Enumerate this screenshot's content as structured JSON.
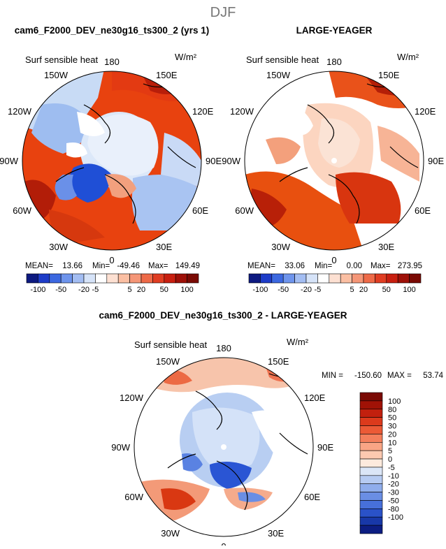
{
  "page": {
    "season": "DJF",
    "variable": "Surf sensible heat",
    "units": "W/m²"
  },
  "panels": [
    {
      "title": "cam6_F2000_DEV_ne30g16_ts300_2 (yrs 1)",
      "stats": {
        "mean_label": "MEAN=",
        "mean": "13.66",
        "min_label": "Min=",
        "min": "-49.46",
        "max_label": "Max=",
        "max": "149.49"
      }
    },
    {
      "title": "LARGE-YEAGER",
      "stats": {
        "mean_label": "MEAN=",
        "mean": "33.06",
        "min_label": "Min=",
        "min": "0.00",
        "max_label": "Max=",
        "max": "273.95"
      }
    },
    {
      "title": "cam6_F2000_DEV_ne30g16_ts300_2 - LARGE-YEAGER",
      "stats": {
        "min_label": "MIN =",
        "min": "-150.60",
        "max_label": "MAX =",
        "max": "53.74"
      }
    }
  ],
  "lon_labels": [
    "180",
    "150E",
    "120E",
    "90E",
    "60E",
    "30E",
    "0",
    "30W",
    "60W",
    "90W",
    "120W",
    "150W"
  ],
  "colorbar_top": {
    "labels": [
      "-100",
      "-50",
      "-20",
      "-5",
      "5",
      "20",
      "50",
      "100"
    ],
    "colors": [
      "#0d1a80",
      "#1e3cc8",
      "#3c68e0",
      "#6e94ec",
      "#a3bdf2",
      "#d6e3f8",
      "#ffffff",
      "#fde0d2",
      "#fbbfa3",
      "#f59677",
      "#ee6a48",
      "#e03d22",
      "#c81f10",
      "#9e1008",
      "#7a0a04"
    ]
  },
  "colorbar_diff": {
    "labels": [
      "100",
      "80",
      "50",
      "30",
      "20",
      "10",
      "5",
      "0",
      "-5",
      "-10",
      "-20",
      "-30",
      "-50",
      "-80",
      "-100"
    ],
    "colors": [
      "#7a0a04",
      "#a01206",
      "#c2200e",
      "#dc3a1c",
      "#ec5a36",
      "#f47f5c",
      "#f9a585",
      "#fcc9b0",
      "#fdeadd",
      "#dbe6f7",
      "#b6cbf2",
      "#8fadec",
      "#6a8ee4",
      "#4770da",
      "#2a52c8",
      "#1838a8",
      "#0c1d82"
    ]
  },
  "chart_data": [
    {
      "type": "heatmap",
      "projection": "north-polar-stereographic",
      "title": "cam6_F2000_DEV_ne30g16_ts300_2 (yrs 1)",
      "variable": "Surf sensible heat",
      "units": "W/m2",
      "contour_levels": [
        -100,
        -80,
        -50,
        -30,
        -20,
        -10,
        -5,
        0,
        5,
        10,
        20,
        30,
        50,
        80,
        100
      ],
      "mean": 13.66,
      "min": -49.46,
      "max": 149.49
    },
    {
      "type": "heatmap",
      "projection": "north-polar-stereographic",
      "title": "LARGE-YEAGER",
      "variable": "Surf sensible heat",
      "units": "W/m2",
      "contour_levels": [
        -100,
        -80,
        -50,
        -30,
        -20,
        -10,
        -5,
        0,
        5,
        10,
        20,
        30,
        50,
        80,
        100
      ],
      "mean": 33.06,
      "min": 0.0,
      "max": 273.95
    },
    {
      "type": "heatmap",
      "projection": "north-polar-stereographic",
      "title": "cam6_F2000_DEV_ne30g16_ts300_2 - LARGE-YEAGER",
      "variable": "Surf sensible heat",
      "units": "W/m2",
      "contour_levels": [
        -100,
        -80,
        -50,
        -30,
        -20,
        -10,
        -5,
        0,
        5,
        10,
        20,
        30,
        50,
        80,
        100
      ],
      "min": -150.6,
      "max": 53.74
    }
  ]
}
